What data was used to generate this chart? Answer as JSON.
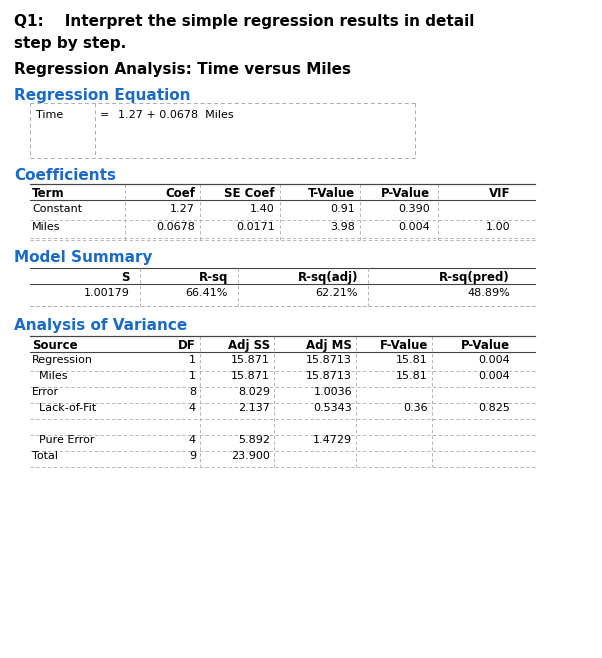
{
  "title_line1": "Q1:    Interpret the simple regression results in detail",
  "title_line2": "step by step.",
  "subtitle": "Regression Analysis: Time versus Miles",
  "section1_title": "Regression Equation",
  "reg_eq_label": "Time",
  "reg_eq_equals": "=",
  "reg_eq_value": "1.27 + 0.0678  Miles",
  "section2_title": "Coefficients",
  "coef_headers": [
    "Term",
    "Coef",
    "SE Coef",
    "T-Value",
    "P-Value",
    "VIF"
  ],
  "coef_rows": [
    [
      "Constant",
      "1.27",
      "1.40",
      "0.91",
      "0.390",
      ""
    ],
    [
      "Miles",
      "0.0678",
      "0.0171",
      "3.98",
      "0.004",
      "1.00"
    ]
  ],
  "section3_title": "Model Summary",
  "model_headers": [
    "S",
    "R-sq",
    "R-sq(adj)",
    "R-sq(pred)"
  ],
  "model_row": [
    "1.00179",
    "66.41%",
    "62.21%",
    "48.89%"
  ],
  "section4_title": "Analysis of Variance",
  "anova_headers": [
    "Source",
    "DF",
    "Adj SS",
    "Adj MS",
    "F-Value",
    "P-Value"
  ],
  "anova_rows": [
    [
      "Regression",
      "1",
      "15.871",
      "15.8713",
      "15.81",
      "0.004"
    ],
    [
      "  Miles",
      "1",
      "15.871",
      "15.8713",
      "15.81",
      "0.004"
    ],
    [
      "Error",
      "8",
      "8.029",
      "1.0036",
      "",
      ""
    ],
    [
      "  Lack-of-Fit",
      "4",
      "2.137",
      "0.5343",
      "0.36",
      "0.825"
    ],
    [
      "",
      "",
      "",
      "",
      "",
      ""
    ],
    [
      "  Pure Error",
      "4",
      "5.892",
      "1.4729",
      "",
      ""
    ],
    [
      "Total",
      "9",
      "23.900",
      "",
      "",
      ""
    ]
  ],
  "blue_color": "#1B6AC6",
  "bg_color": "#ffffff",
  "text_color": "#000000",
  "dash_color": "#aaaaaa",
  "solid_color": "#444444",
  "title_fs": 11,
  "subtitle_fs": 11,
  "section_fs": 11,
  "header_fs": 8.5,
  "cell_fs": 8,
  "eq_fs": 8
}
